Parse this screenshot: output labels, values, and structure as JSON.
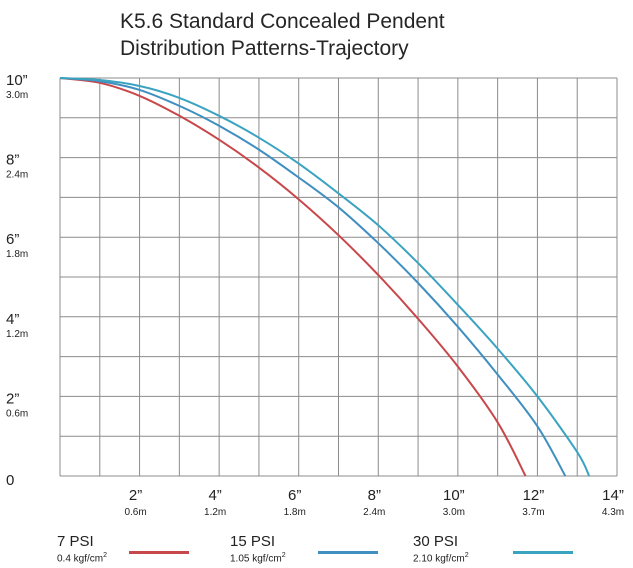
{
  "title_line1": "K5.6 Standard Concealed Pendent",
  "title_line2": "Distribution Patterns-Trajectory",
  "chart_data": {
    "type": "line",
    "title": "K5.6 Standard Concealed Pendent Distribution Patterns-Trajectory",
    "xlim": [
      0,
      14
    ],
    "ylim": [
      0,
      10
    ],
    "grid": true,
    "legend_position": "bottom",
    "x_ticks": [
      {
        "value": 2,
        "label": "2”",
        "sub": "0.6m"
      },
      {
        "value": 4,
        "label": "4”",
        "sub": "1.2m"
      },
      {
        "value": 6,
        "label": "6”",
        "sub": "1.8m"
      },
      {
        "value": 8,
        "label": "8”",
        "sub": "2.4m"
      },
      {
        "value": 10,
        "label": "10”",
        "sub": "3.0m"
      },
      {
        "value": 12,
        "label": "12”",
        "sub": "3.7m"
      },
      {
        "value": 14,
        "label": "14”",
        "sub": "4.3m"
      }
    ],
    "y_ticks": [
      {
        "value": 0,
        "label": "0",
        "sub": ""
      },
      {
        "value": 2,
        "label": "2”",
        "sub": "0.6m"
      },
      {
        "value": 4,
        "label": "4”",
        "sub": "1.2m"
      },
      {
        "value": 6,
        "label": "6”",
        "sub": "1.8m"
      },
      {
        "value": 8,
        "label": "8”",
        "sub": "2.4m"
      },
      {
        "value": 10,
        "label": "10”",
        "sub": "3.0m"
      }
    ],
    "series": [
      {
        "name": "7 PSI",
        "sub": "0.4 kgf/cm2",
        "color": "#c8474a",
        "x": [
          0,
          1,
          2,
          3,
          4,
          5,
          6,
          7,
          8,
          9,
          10,
          11,
          11.7
        ],
        "y": [
          10,
          9.88,
          9.55,
          9.05,
          8.45,
          7.75,
          6.95,
          6.05,
          5.05,
          3.95,
          2.75,
          1.35,
          0
        ]
      },
      {
        "name": "15 PSI",
        "sub": "1.05 kgf/cm2",
        "color": "#3f8fc0",
        "x": [
          0,
          1,
          2,
          3,
          4,
          5,
          6,
          7,
          8,
          9,
          10,
          11,
          12,
          12.7
        ],
        "y": [
          10,
          9.92,
          9.7,
          9.3,
          8.8,
          8.2,
          7.5,
          6.75,
          5.85,
          4.85,
          3.75,
          2.55,
          1.25,
          0
        ]
      },
      {
        "name": "30 PSI",
        "sub": "2.10 kgf/cm2",
        "color": "#3aa3c0",
        "x": [
          0,
          1,
          2,
          3,
          4,
          5,
          6,
          7,
          8,
          9,
          10,
          11,
          12,
          13,
          13.3
        ],
        "y": [
          10,
          9.95,
          9.8,
          9.5,
          9.05,
          8.5,
          7.85,
          7.1,
          6.3,
          5.35,
          4.3,
          3.2,
          2.0,
          0.6,
          0
        ]
      }
    ]
  }
}
